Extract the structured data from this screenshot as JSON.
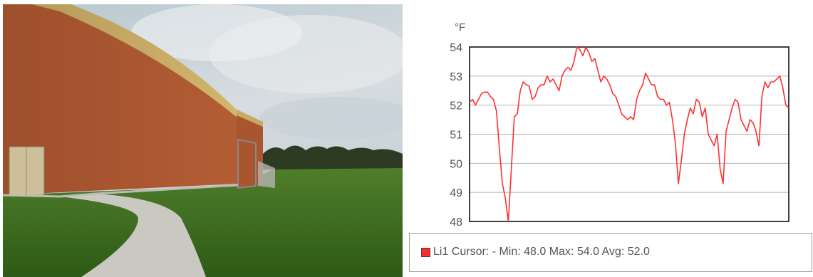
{
  "chart_data": {
    "type": "line",
    "unit": "°F",
    "ylim": [
      48,
      54
    ],
    "yticks": [
      "54",
      "53",
      "52",
      "51",
      "50",
      "49",
      "48"
    ],
    "grid": true,
    "series": [
      {
        "name": "Li1",
        "color": "#ff3030",
        "values": [
          52.1,
          52.2,
          52.0,
          52.2,
          52.4,
          52.45,
          52.45,
          52.3,
          52.2,
          51.8,
          50.5,
          49.3,
          48.8,
          48.0,
          49.8,
          51.6,
          51.7,
          52.5,
          52.8,
          52.7,
          52.65,
          52.2,
          52.3,
          52.6,
          52.7,
          52.7,
          53.0,
          52.8,
          52.9,
          52.7,
          52.5,
          53.0,
          53.2,
          53.3,
          53.2,
          53.5,
          54.0,
          53.9,
          53.7,
          54.0,
          53.8,
          53.5,
          53.6,
          53.2,
          52.8,
          53.0,
          52.9,
          52.7,
          52.4,
          52.3,
          52.0,
          51.7,
          51.6,
          51.5,
          51.6,
          51.5,
          52.2,
          52.5,
          52.7,
          53.1,
          52.9,
          52.7,
          52.7,
          52.3,
          52.2,
          52.2,
          52.0,
          52.1,
          51.5,
          50.7,
          49.3,
          50.1,
          51.0,
          51.5,
          51.9,
          51.7,
          52.2,
          52.1,
          51.6,
          51.9,
          51.0,
          50.8,
          50.6,
          51.0,
          49.8,
          49.3,
          51.1,
          51.5,
          51.9,
          52.2,
          52.1,
          51.5,
          51.3,
          51.1,
          51.5,
          51.4,
          51.1,
          50.6,
          52.3,
          52.8,
          52.6,
          52.8,
          52.8,
          52.9,
          53.0,
          52.6,
          52.0,
          51.9
        ]
      }
    ],
    "legend": {
      "position": "bottom",
      "text": "Li1 Cursor: - Min: 48.0 Max: 54.0 Avg: 52.0"
    }
  }
}
